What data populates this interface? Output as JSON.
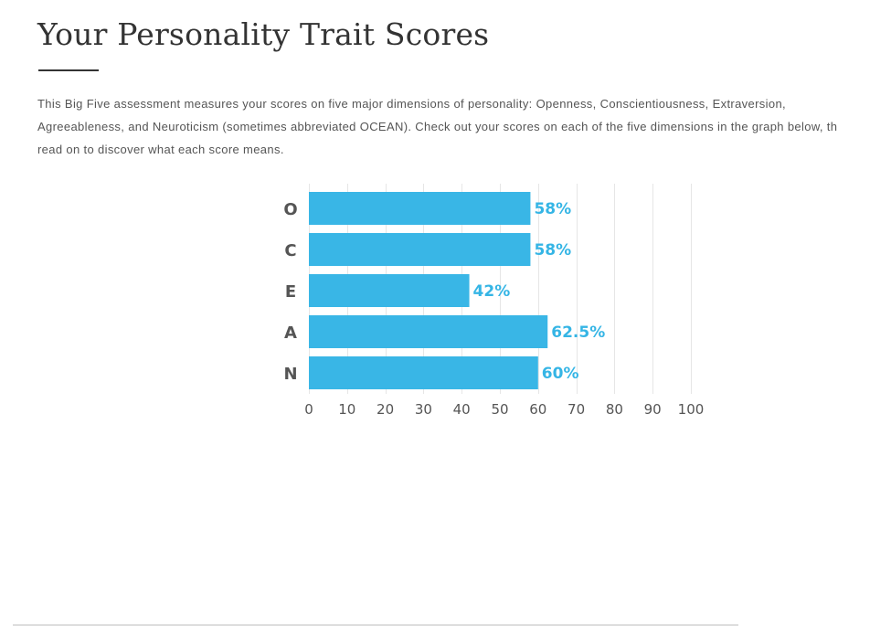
{
  "page": {
    "title": "Your Personality Trait Scores",
    "intro_lines": [
      "This Big Five assessment measures your scores on five major dimensions of personality: Openness, Conscientiousness, Extraversion,",
      "Agreeableness, and Neuroticism (sometimes abbreviated OCEAN). Check out your scores on each of the five dimensions in the graph below, th",
      "read on to discover what each score means."
    ]
  },
  "colors": {
    "bar": "#35b5e5",
    "value_label": "#35b5e5",
    "text": "#333333",
    "body_text": "#555555",
    "axis_text": "#555555",
    "grid": "#e6e6e6"
  },
  "chart_data": {
    "type": "bar",
    "orientation": "horizontal",
    "categories": [
      "O",
      "C",
      "E",
      "A",
      "N"
    ],
    "values": [
      58,
      58,
      42,
      62.5,
      60
    ],
    "value_labels": [
      "58%",
      "58%",
      "42%",
      "62.5%",
      "60%"
    ],
    "title": "",
    "xlabel": "",
    "ylabel": "",
    "xlim": [
      0,
      100
    ],
    "x_ticks": [
      "0",
      "10",
      "20",
      "30",
      "40",
      "50",
      "60",
      "70",
      "80",
      "90",
      "100"
    ],
    "grid": true,
    "legend": "none"
  }
}
